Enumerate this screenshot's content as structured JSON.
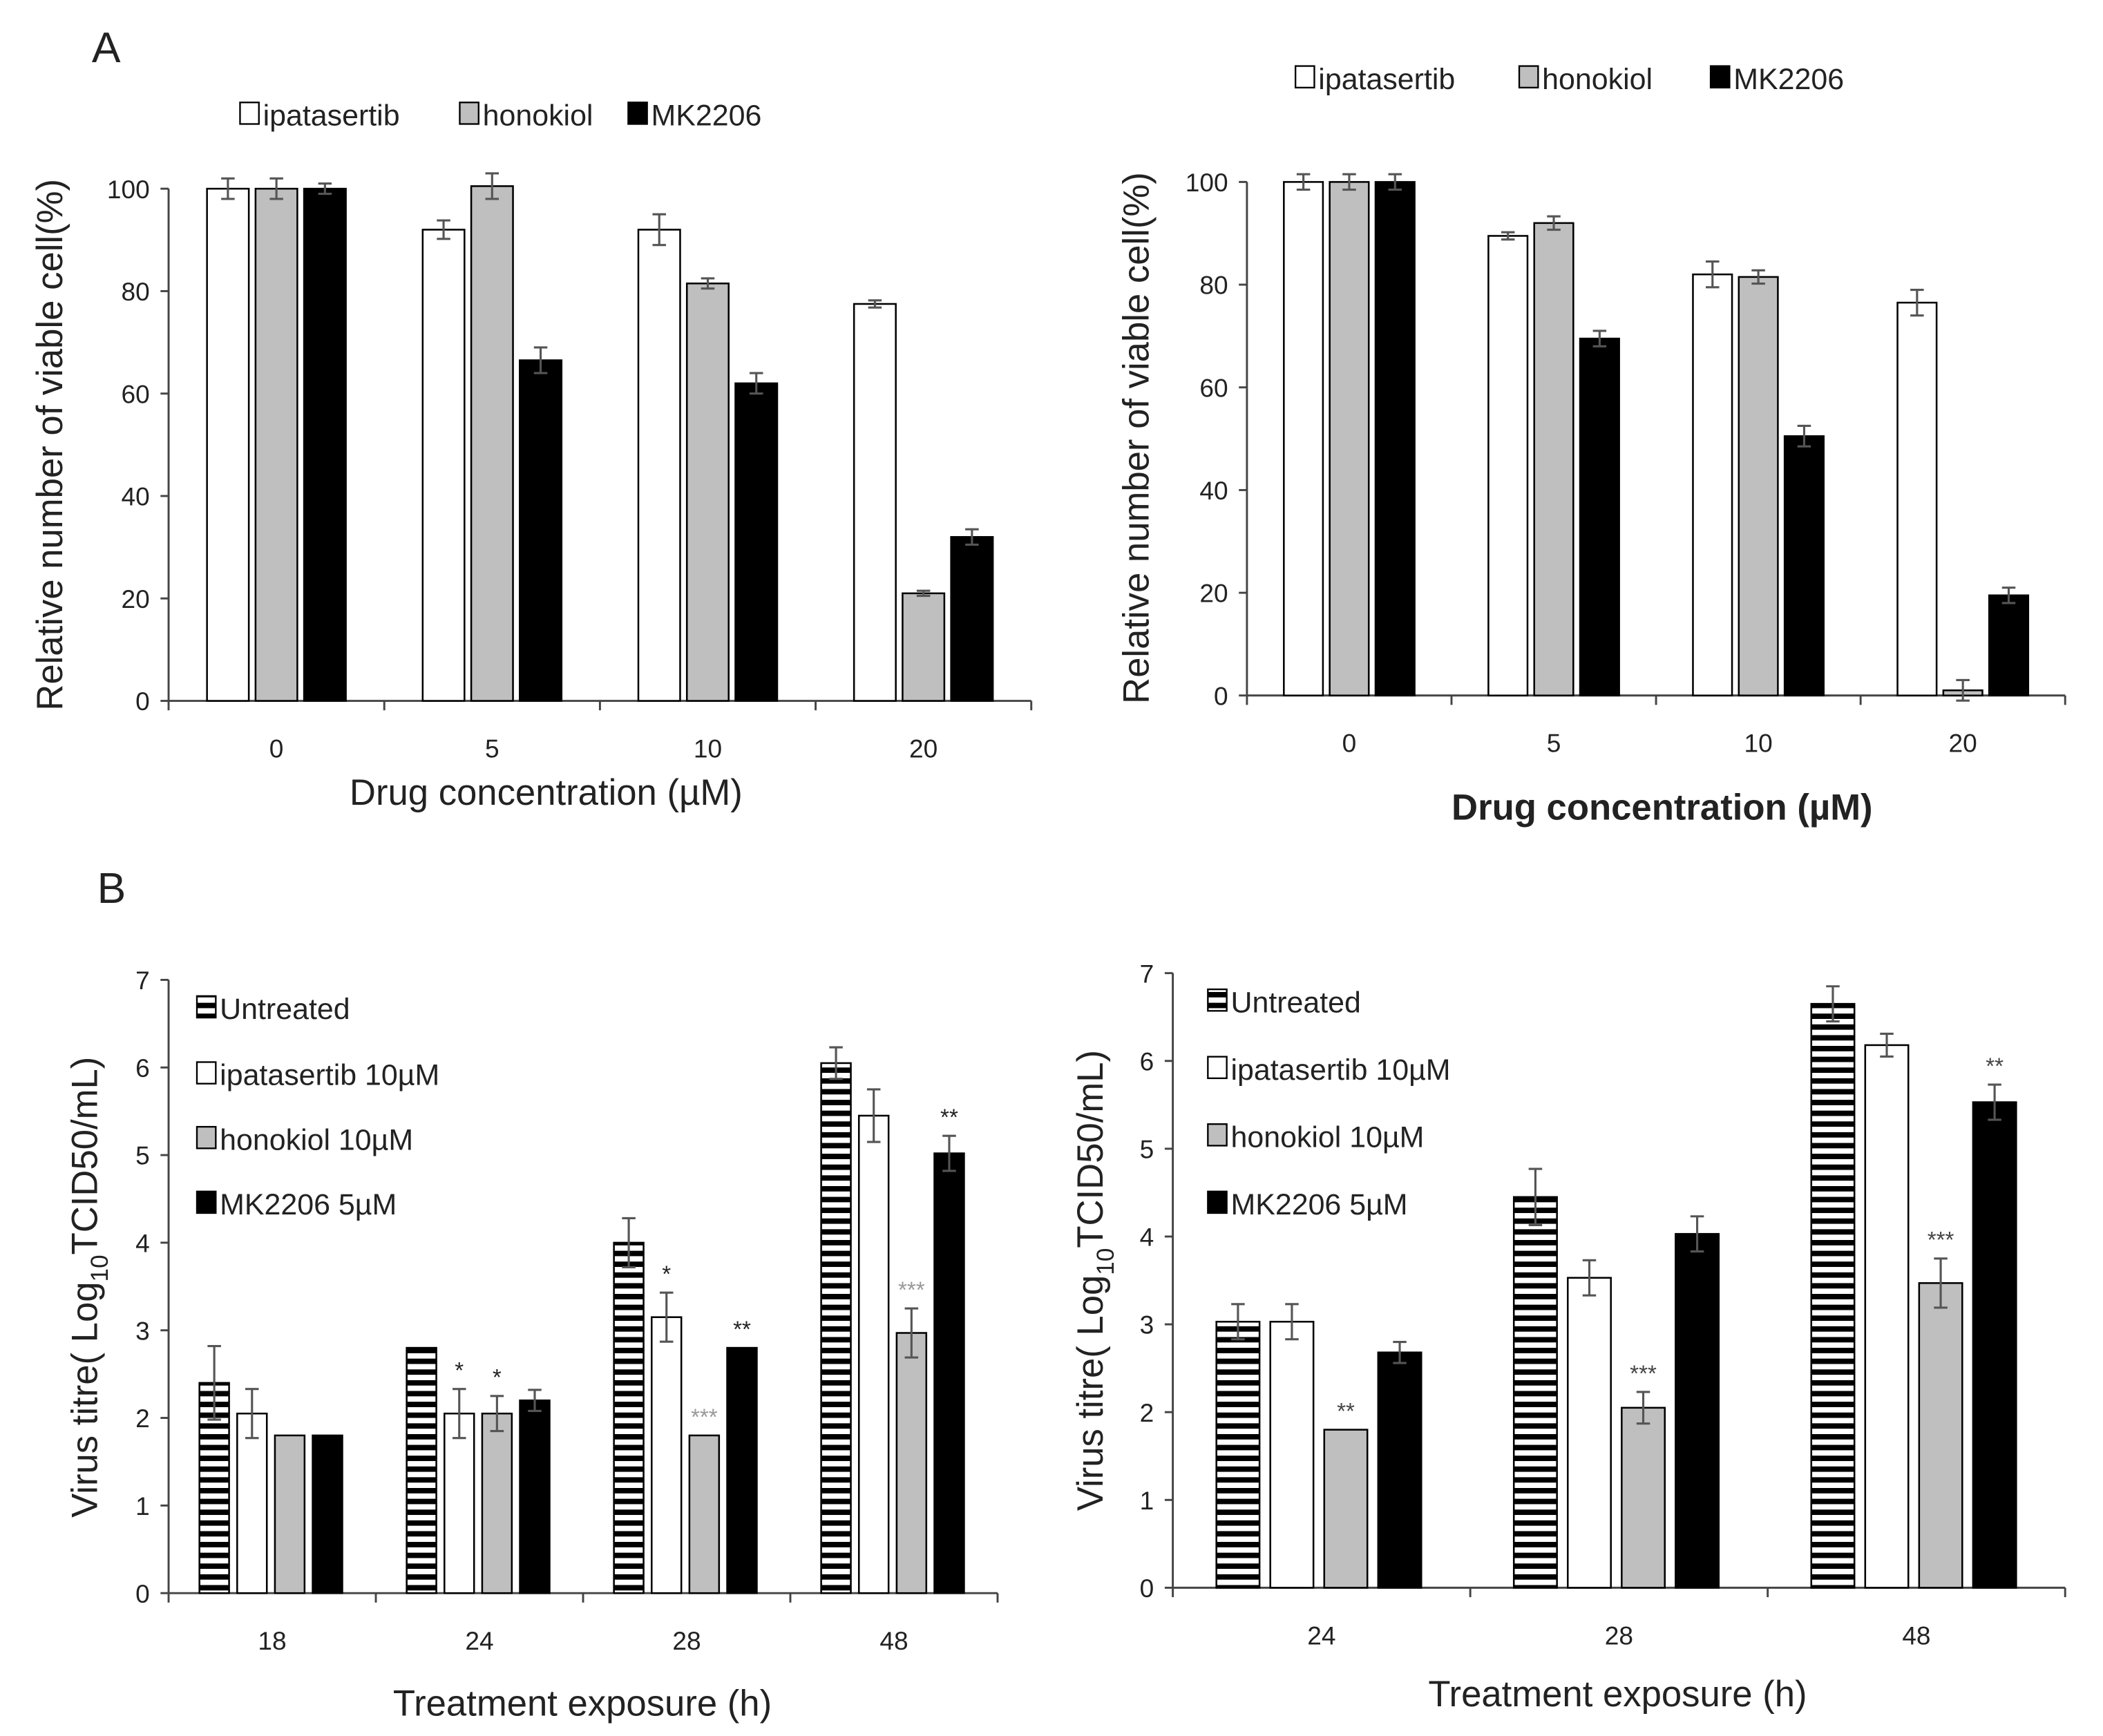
{
  "panels": {
    "a": "A",
    "b": "B"
  },
  "colors": {
    "ipatasertib": "#ffffff",
    "honokiol": "#bfbfbf",
    "MK2206": "#000000",
    "untreated": "hatched",
    "errorbar": "#555555"
  },
  "chart_data": [
    {
      "type": "bar",
      "panel": "A",
      "title": "",
      "xlabel": "Drug concentration (µM)",
      "ylabel": "Relative number of viable cell(%)",
      "ylim": [
        0,
        100
      ],
      "yticks": [
        "0",
        "20",
        "40",
        "60",
        "80",
        "100"
      ],
      "categories": [
        "0",
        "5",
        "10",
        "20"
      ],
      "legend_placement": "top",
      "series": [
        {
          "name": "ipatasertib",
          "fill": "white",
          "values": [
            100,
            92,
            92,
            77.5
          ],
          "errors": [
            2,
            1.8,
            3,
            0.7
          ]
        },
        {
          "name": "honokiol",
          "fill": "grey",
          "values": [
            100,
            100.5,
            81.5,
            21
          ],
          "errors": [
            2,
            2.5,
            1,
            0.5
          ]
        },
        {
          "name": "MK2206",
          "fill": "black",
          "values": [
            100,
            66.5,
            62,
            32
          ],
          "errors": [
            1,
            2.5,
            2,
            1.5
          ]
        }
      ],
      "annotations": []
    },
    {
      "type": "bar",
      "panel": "A",
      "title": "",
      "xlabel": "Drug concentration (µM)",
      "ylabel": "Relative number of viable cell(%)",
      "ylim": [
        0,
        100
      ],
      "yticks": [
        "0",
        "20",
        "40",
        "60",
        "80",
        "100"
      ],
      "categories": [
        "0",
        "5",
        "10",
        "20"
      ],
      "legend_placement": "top",
      "series": [
        {
          "name": "ipatasertib",
          "fill": "white",
          "values": [
            100,
            89.5,
            82,
            76.5
          ],
          "errors": [
            1.5,
            0.7,
            2.5,
            2.5
          ]
        },
        {
          "name": "honokiol",
          "fill": "grey",
          "values": [
            100,
            92,
            81.5,
            1
          ],
          "errors": [
            1.5,
            1.3,
            1.3,
            2
          ]
        },
        {
          "name": "MK2206",
          "fill": "black",
          "values": [
            100,
            69.5,
            50.5,
            19.5
          ],
          "errors": [
            1.5,
            1.5,
            2,
            1.5
          ]
        }
      ],
      "annotations": []
    },
    {
      "type": "bar",
      "panel": "B",
      "title": "",
      "xlabel": "Treatment exposure (h)",
      "ylabel_prefix": "Virus titre( Log",
      "ylabel_sub": "10",
      "ylabel_suffix": "TCID50/mL)",
      "ylim": [
        0,
        7
      ],
      "yticks": [
        "0",
        "1",
        "2",
        "3",
        "4",
        "5",
        "6",
        "7"
      ],
      "categories": [
        "18",
        "24",
        "28",
        "48"
      ],
      "legend_placement": "top-left",
      "series": [
        {
          "name": "Untreated",
          "fill": "hatched",
          "values": [
            2.4,
            2.8,
            4.0,
            6.05
          ],
          "errors": [
            0.42,
            0,
            0.28,
            0.18
          ]
        },
        {
          "name": "ipatasertib 10µM",
          "fill": "white",
          "values": [
            2.05,
            2.05,
            3.15,
            5.45
          ],
          "errors": [
            0.28,
            0.28,
            0.28,
            0.3
          ]
        },
        {
          "name": "honokiol 10µM",
          "fill": "grey",
          "values": [
            1.8,
            2.05,
            1.8,
            2.97
          ],
          "errors": [
            0,
            0.2,
            0,
            0.28
          ]
        },
        {
          "name": "MK2206 5µM",
          "fill": "black",
          "values": [
            1.8,
            2.2,
            2.8,
            5.02
          ],
          "errors": [
            0,
            0.12,
            0,
            0.2
          ]
        }
      ],
      "annotations": [
        {
          "category": "24",
          "series": 1,
          "text": "*",
          "color": "#222222"
        },
        {
          "category": "24",
          "series": 2,
          "text": "*",
          "color": "#222222"
        },
        {
          "category": "28",
          "series": 1,
          "text": "*",
          "color": "#222222"
        },
        {
          "category": "28",
          "series": 2,
          "text": "***",
          "color": "#999999"
        },
        {
          "category": "28",
          "series": 3,
          "text": "**",
          "color": "#222222"
        },
        {
          "category": "48",
          "series": 2,
          "text": "***",
          "color": "#999999"
        },
        {
          "category": "48",
          "series": 3,
          "text": "**",
          "color": "#222222"
        }
      ]
    },
    {
      "type": "bar",
      "panel": "B",
      "title": "",
      "xlabel": "Treatment exposure (h)",
      "ylabel_prefix": "Virus titre( Log",
      "ylabel_sub": "10",
      "ylabel_suffix": "TCID50/mL)",
      "ylim": [
        0,
        7
      ],
      "yticks": [
        "0",
        "1",
        "2",
        "3",
        "4",
        "5",
        "6",
        "7"
      ],
      "categories": [
        "24",
        "28",
        "48"
      ],
      "legend_placement": "top-left",
      "series": [
        {
          "name": "Untreated",
          "fill": "hatched",
          "values": [
            3.03,
            4.45,
            6.65
          ],
          "errors": [
            0.2,
            0.32,
            0.2
          ]
        },
        {
          "name": "ipatasertib 10µM",
          "fill": "white",
          "values": [
            3.03,
            3.53,
            6.18
          ],
          "errors": [
            0.2,
            0.2,
            0.13
          ]
        },
        {
          "name": "honokiol 10µM",
          "fill": "grey",
          "values": [
            1.8,
            2.05,
            3.47
          ],
          "errors": [
            0,
            0.18,
            0.28
          ]
        },
        {
          "name": "MK2206 5µM",
          "fill": "black",
          "values": [
            2.68,
            4.03,
            5.53
          ],
          "errors": [
            0.12,
            0.2,
            0.2
          ]
        }
      ],
      "annotations": [
        {
          "category": "24",
          "series": 2,
          "text": "**",
          "color": "#444444"
        },
        {
          "category": "28",
          "series": 2,
          "text": "***",
          "color": "#444444"
        },
        {
          "category": "48",
          "series": 2,
          "text": "***",
          "color": "#444444"
        },
        {
          "category": "48",
          "series": 3,
          "text": "**",
          "color": "#444444"
        }
      ]
    }
  ]
}
